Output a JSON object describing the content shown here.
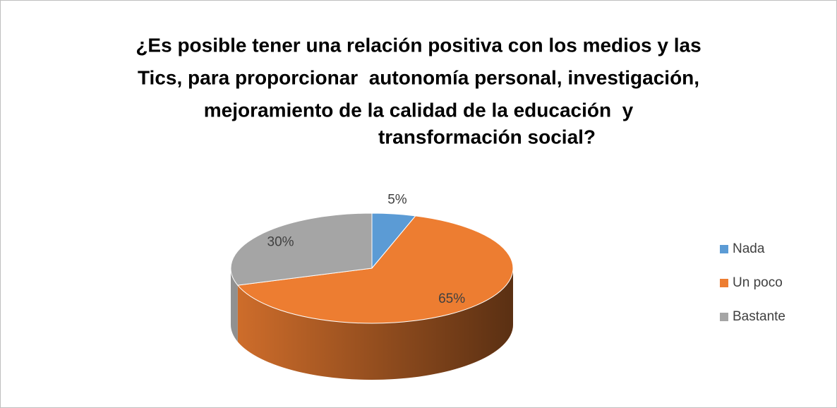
{
  "chart_data": {
    "type": "pie",
    "title": [
      "¿Es posible tener una relación positiva con los medios y las",
      "Tics, para proporcionar  autonomía personal, investigación,",
      "mejoramiento de la calidad de la educación  y",
      "transformación social?"
    ],
    "categories": [
      "Nada",
      "Un poco",
      "Bastante"
    ],
    "values": [
      5,
      65,
      30
    ],
    "value_labels": [
      "5%",
      "65%",
      "30%"
    ],
    "colors": [
      "#5b9bd5",
      "#ed7d31",
      "#a5a5a5"
    ],
    "legend": "right"
  }
}
